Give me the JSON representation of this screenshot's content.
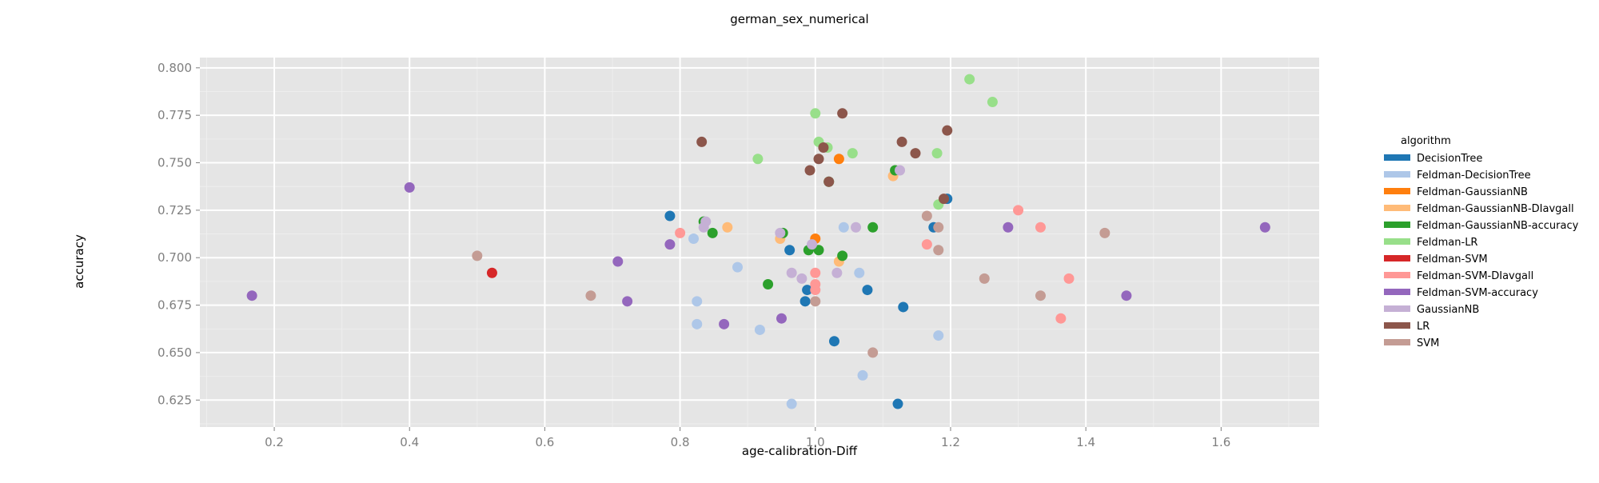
{
  "chart_data": {
    "type": "scatter",
    "title": "german_sex_numerical",
    "xlabel": "age-calibration-Diff",
    "ylabel": "accuracy",
    "xlim": [
      0.09,
      1.745
    ],
    "ylim": [
      0.6108,
      0.8054
    ],
    "xticks": [
      0.2,
      0.4,
      0.6,
      0.8,
      1.0,
      1.2,
      1.4,
      1.6
    ],
    "yticks": [
      0.625,
      0.65,
      0.675,
      0.7,
      0.725,
      0.75,
      0.775,
      0.8
    ],
    "xtick_labels": [
      "0.2",
      "0.4",
      "0.6",
      "0.8",
      "1.0",
      "1.2",
      "1.4",
      "1.6"
    ],
    "ytick_labels": [
      "0.625",
      "0.650",
      "0.675",
      "0.700",
      "0.725",
      "0.750",
      "0.775",
      "0.800"
    ],
    "grid": true,
    "legend_title": "algorithm",
    "legend_position": "right",
    "series": [
      {
        "name": "DecisionTree",
        "color": "#1f77b4",
        "points": [
          [
            0.785,
            0.722
          ],
          [
            0.962,
            0.704
          ],
          [
            0.985,
            0.677
          ],
          [
            0.988,
            0.683
          ],
          [
            1.028,
            0.656
          ],
          [
            1.077,
            0.683
          ],
          [
            1.122,
            0.623
          ],
          [
            1.13,
            0.674
          ],
          [
            1.175,
            0.716
          ],
          [
            1.195,
            0.731
          ]
        ]
      },
      {
        "name": "Feldman-DecisionTree",
        "color": "#aec7e8",
        "points": [
          [
            0.82,
            0.71
          ],
          [
            0.825,
            0.677
          ],
          [
            0.825,
            0.665
          ],
          [
            0.885,
            0.695
          ],
          [
            0.918,
            0.662
          ],
          [
            0.965,
            0.623
          ],
          [
            1.042,
            0.716
          ],
          [
            1.065,
            0.692
          ],
          [
            1.07,
            0.638
          ],
          [
            1.182,
            0.659
          ]
        ]
      },
      {
        "name": "Feldman-GaussianNB",
        "color": "#ff7f0e",
        "points": [
          [
            1.0,
            0.71
          ],
          [
            1.035,
            0.752
          ]
        ]
      },
      {
        "name": "Feldman-GaussianNB-DIavgall",
        "color": "#ffbb78",
        "points": [
          [
            0.87,
            0.716
          ],
          [
            0.948,
            0.71
          ],
          [
            1.035,
            0.698
          ],
          [
            1.115,
            0.743
          ]
        ]
      },
      {
        "name": "Feldman-GaussianNB-accuracy",
        "color": "#2ca02c",
        "points": [
          [
            0.835,
            0.719
          ],
          [
            0.848,
            0.713
          ],
          [
            0.93,
            0.686
          ],
          [
            0.952,
            0.713
          ],
          [
            0.99,
            0.704
          ],
          [
            1.005,
            0.704
          ],
          [
            1.02,
            0.74
          ],
          [
            1.04,
            0.701
          ],
          [
            1.085,
            0.716
          ],
          [
            1.118,
            0.746
          ]
        ]
      },
      {
        "name": "Feldman-LR",
        "color": "#98df8a",
        "points": [
          [
            0.915,
            0.752
          ],
          [
            1.0,
            0.776
          ],
          [
            1.005,
            0.761
          ],
          [
            1.018,
            0.758
          ],
          [
            1.055,
            0.755
          ],
          [
            1.18,
            0.755
          ],
          [
            1.182,
            0.728
          ],
          [
            1.228,
            0.794
          ],
          [
            1.262,
            0.782
          ]
        ]
      },
      {
        "name": "Feldman-SVM",
        "color": "#d62728",
        "points": [
          [
            0.522,
            0.692
          ]
        ]
      },
      {
        "name": "Feldman-SVM-DIavgall",
        "color": "#ff9896",
        "points": [
          [
            0.8,
            0.713
          ],
          [
            1.0,
            0.692
          ],
          [
            1.0,
            0.686
          ],
          [
            1.0,
            0.683
          ],
          [
            1.165,
            0.707
          ],
          [
            1.3,
            0.725
          ],
          [
            1.333,
            0.716
          ],
          [
            1.363,
            0.668
          ],
          [
            1.375,
            0.689
          ]
        ]
      },
      {
        "name": "Feldman-SVM-accuracy",
        "color": "#9467bd",
        "points": [
          [
            0.167,
            0.68
          ],
          [
            0.4,
            0.737
          ],
          [
            0.708,
            0.698
          ],
          [
            0.722,
            0.677
          ],
          [
            0.785,
            0.707
          ],
          [
            0.865,
            0.665
          ],
          [
            0.95,
            0.668
          ],
          [
            1.285,
            0.716
          ],
          [
            1.46,
            0.68
          ],
          [
            1.665,
            0.716
          ]
        ]
      },
      {
        "name": "GaussianNB",
        "color": "#c5b0d5",
        "points": [
          [
            0.835,
            0.716
          ],
          [
            0.838,
            0.719
          ],
          [
            0.948,
            0.713
          ],
          [
            0.965,
            0.692
          ],
          [
            0.98,
            0.689
          ],
          [
            0.995,
            0.707
          ],
          [
            1.032,
            0.692
          ],
          [
            1.06,
            0.716
          ],
          [
            1.125,
            0.746
          ]
        ]
      },
      {
        "name": "LR",
        "color": "#8c564b",
        "points": [
          [
            0.832,
            0.761
          ],
          [
            0.992,
            0.746
          ],
          [
            1.005,
            0.752
          ],
          [
            1.012,
            0.758
          ],
          [
            1.02,
            0.74
          ],
          [
            1.04,
            0.776
          ],
          [
            1.128,
            0.761
          ],
          [
            1.148,
            0.755
          ],
          [
            1.19,
            0.731
          ],
          [
            1.195,
            0.767
          ]
        ]
      },
      {
        "name": "SVM",
        "color": "#c49c94",
        "points": [
          [
            0.5,
            0.701
          ],
          [
            0.668,
            0.68
          ],
          [
            1.0,
            0.677
          ],
          [
            1.085,
            0.65
          ],
          [
            1.165,
            0.722
          ],
          [
            1.182,
            0.716
          ],
          [
            1.182,
            0.704
          ],
          [
            1.25,
            0.689
          ],
          [
            1.333,
            0.68
          ],
          [
            1.428,
            0.713
          ]
        ]
      }
    ]
  }
}
